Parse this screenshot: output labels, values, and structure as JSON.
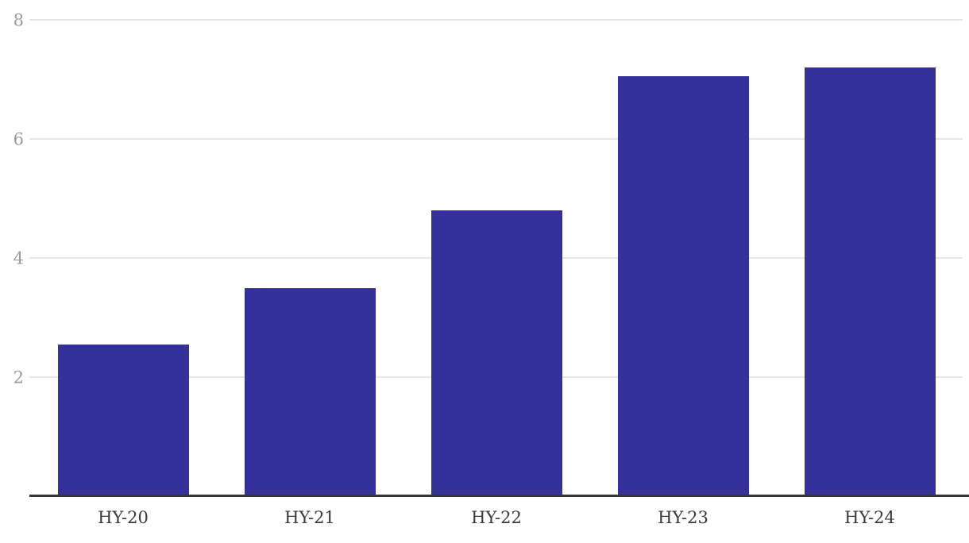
{
  "chart_data": {
    "type": "bar",
    "title": "",
    "xlabel": "",
    "ylabel": "",
    "categories": [
      "HY-20",
      "HY-21",
      "HY-22",
      "HY-23",
      "HY-24"
    ],
    "values": [
      2.55,
      3.5,
      4.8,
      7.05,
      7.2
    ],
    "ylim": [
      0,
      8
    ],
    "yticks": [
      2,
      4,
      6,
      8
    ],
    "grid": true,
    "legend": false,
    "colors": {
      "bar": "#34319a",
      "gridline": "#e7e7e7",
      "axis_line": "#35353b",
      "y_tick_label": "#9b9b9b",
      "x_tick_label": "#3a3a3a",
      "background": "#ffffff"
    }
  }
}
